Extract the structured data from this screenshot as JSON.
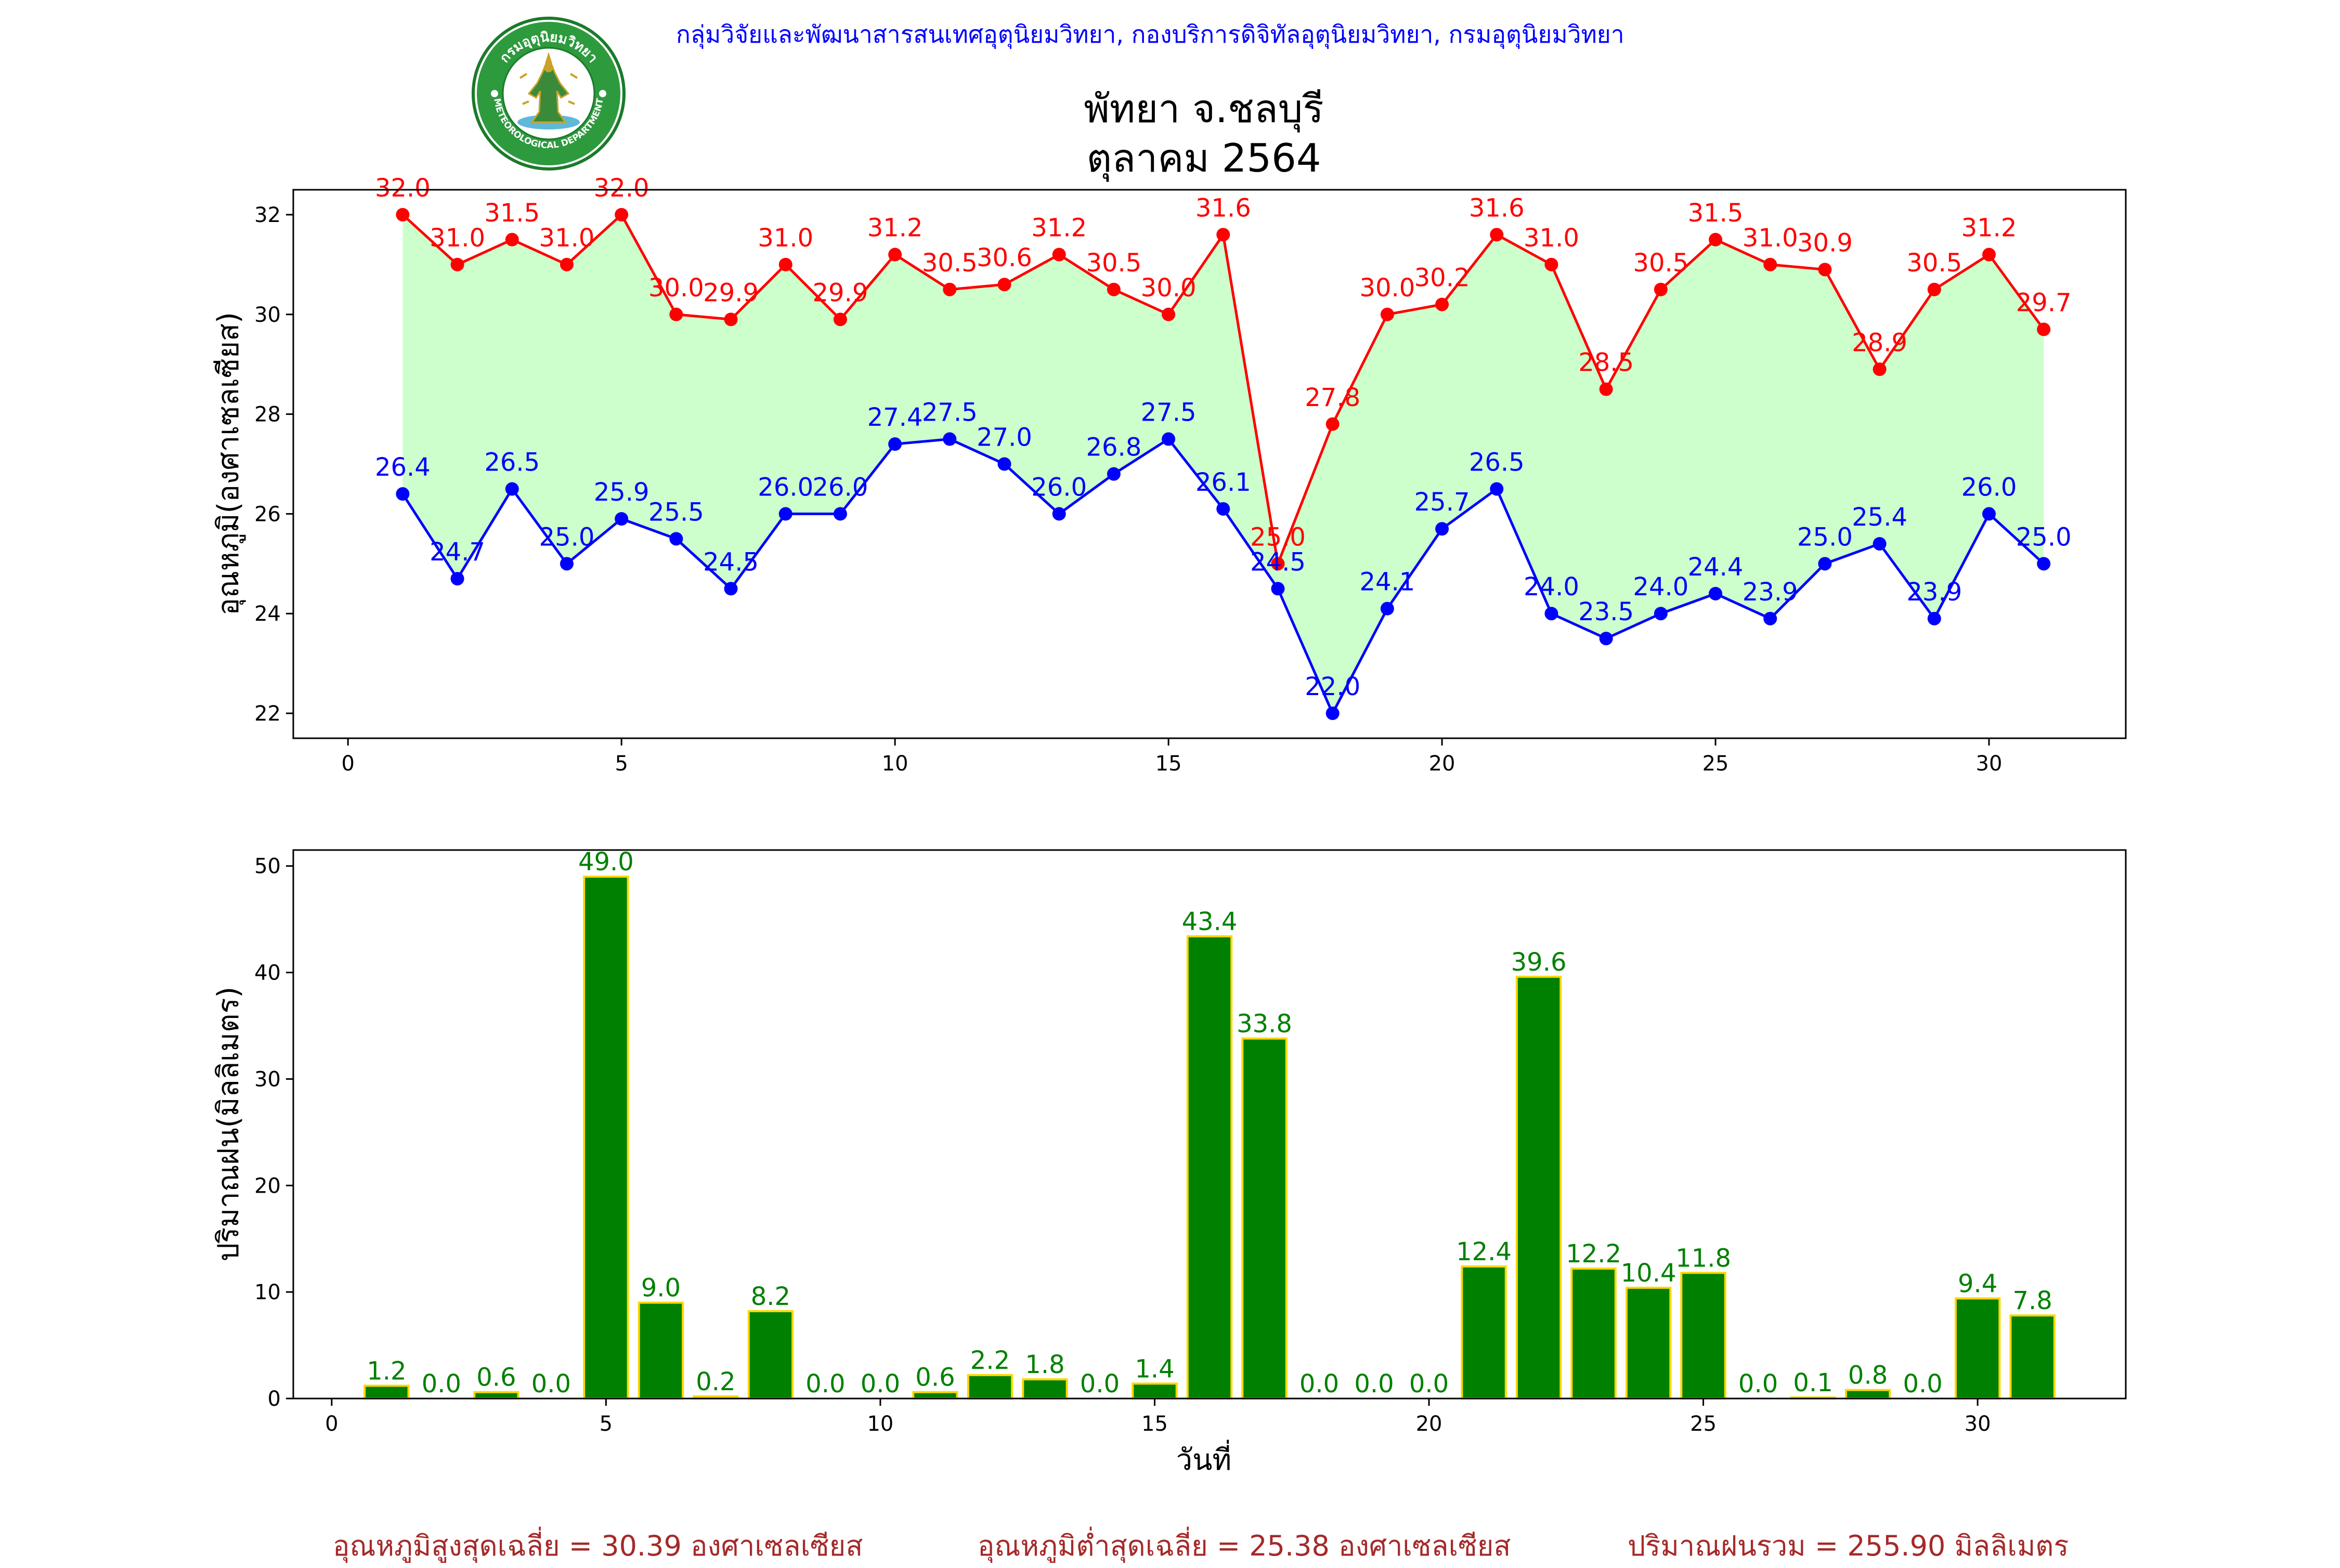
{
  "header": {
    "agency": "กลุ่มวิจัยและพัฒนาสารสนเทศอุตุนิยมวิทยา, กองบริการดิจิทัลอุตุนิยมวิทยา, กรมอุตุนิยมวิทยา",
    "logo_top_text": "กรมอุตุนิยมวิทยา",
    "logo_bottom_text": "METEOROLOGICAL DEPARTMENT"
  },
  "title": {
    "line1": "พัทยา จ.ชลบุรี",
    "line2": "ตุลาคม 2564"
  },
  "colors": {
    "max_temp": "#ff0000",
    "min_temp": "#0000ff",
    "band_fill": "#ccffcc",
    "rain_bar": "#008000",
    "rain_edge": "#ffd700",
    "rain_label": "#008000",
    "summary": "#a52a2a",
    "header": "#0000ff"
  },
  "chart_data": [
    {
      "type": "line",
      "title": "พัทยา จ.ชลบุรี ตุลาคม 2564",
      "xlabel": "",
      "ylabel": "อุณหภูมิ(องศาเซลเซียส)",
      "x": [
        1,
        2,
        3,
        4,
        5,
        6,
        7,
        8,
        9,
        10,
        11,
        12,
        13,
        14,
        15,
        16,
        17,
        18,
        19,
        20,
        21,
        22,
        23,
        24,
        25,
        26,
        27,
        28,
        29,
        30,
        31
      ],
      "series": [
        {
          "values": [
            32.0,
            31.0,
            31.5,
            31.0,
            32.0,
            30.0,
            29.9,
            31.0,
            29.9,
            31.2,
            30.5,
            30.6,
            31.2,
            30.5,
            30.0,
            31.6,
            25.0,
            27.8,
            30.0,
            30.2,
            31.6,
            31.0,
            28.5,
            30.5,
            31.5,
            31.0,
            30.9,
            28.9,
            30.5,
            31.2,
            29.7
          ]
        },
        {
          "values": [
            26.4,
            24.7,
            26.5,
            25.0,
            25.9,
            25.5,
            24.5,
            26.0,
            26.0,
            27.4,
            27.5,
            27.0,
            26.0,
            26.8,
            27.5,
            26.1,
            24.5,
            22.0,
            24.1,
            25.7,
            26.5,
            24.0,
            23.5,
            24.0,
            24.4,
            23.9,
            25.0,
            25.4,
            23.9,
            26.0,
            25.0
          ]
        }
      ],
      "xlim": [
        -1,
        32.5
      ],
      "ylim": [
        21.5,
        32.5
      ],
      "xticks": [
        0,
        5,
        10,
        15,
        20,
        25,
        30
      ],
      "yticks": [
        22,
        24,
        26,
        28,
        30,
        32
      ],
      "grid": false,
      "fill_between_series": true,
      "data_labels": true
    },
    {
      "type": "bar",
      "xlabel": "วันที่",
      "ylabel": "ปริมาณฝน(มิลลิเมตร)",
      "categories": [
        1,
        2,
        3,
        4,
        5,
        6,
        7,
        8,
        9,
        10,
        11,
        12,
        13,
        14,
        15,
        16,
        17,
        18,
        19,
        20,
        21,
        22,
        23,
        24,
        25,
        26,
        27,
        28,
        29,
        30,
        31
      ],
      "values": [
        1.2,
        0.0,
        0.6,
        0.0,
        49.0,
        9.0,
        0.2,
        8.2,
        0.0,
        0.0,
        0.6,
        2.2,
        1.8,
        0.0,
        1.4,
        43.4,
        33.8,
        0.0,
        0.0,
        0.0,
        12.4,
        39.6,
        12.2,
        10.4,
        11.8,
        0.0,
        0.1,
        0.8,
        0.0,
        9.4,
        7.8
      ],
      "xlim": [
        -0.7,
        32.7
      ],
      "ylim": [
        0,
        51.5
      ],
      "xticks": [
        0,
        5,
        10,
        15,
        20,
        25,
        30
      ],
      "yticks": [
        0,
        10,
        20,
        30,
        40,
        50
      ],
      "grid": false,
      "data_labels": true
    }
  ],
  "summary": {
    "avg_max": "อุณหภูมิสูงสุดเฉลี่ย = 30.39 องศาเซลเซียส",
    "avg_min": "อุณหภูมิต่ำสุดเฉลี่ย = 25.38 องศาเซลเซียส",
    "total_rain": "ปริมาณฝนรวม = 255.90 มิลลิเมตร"
  }
}
